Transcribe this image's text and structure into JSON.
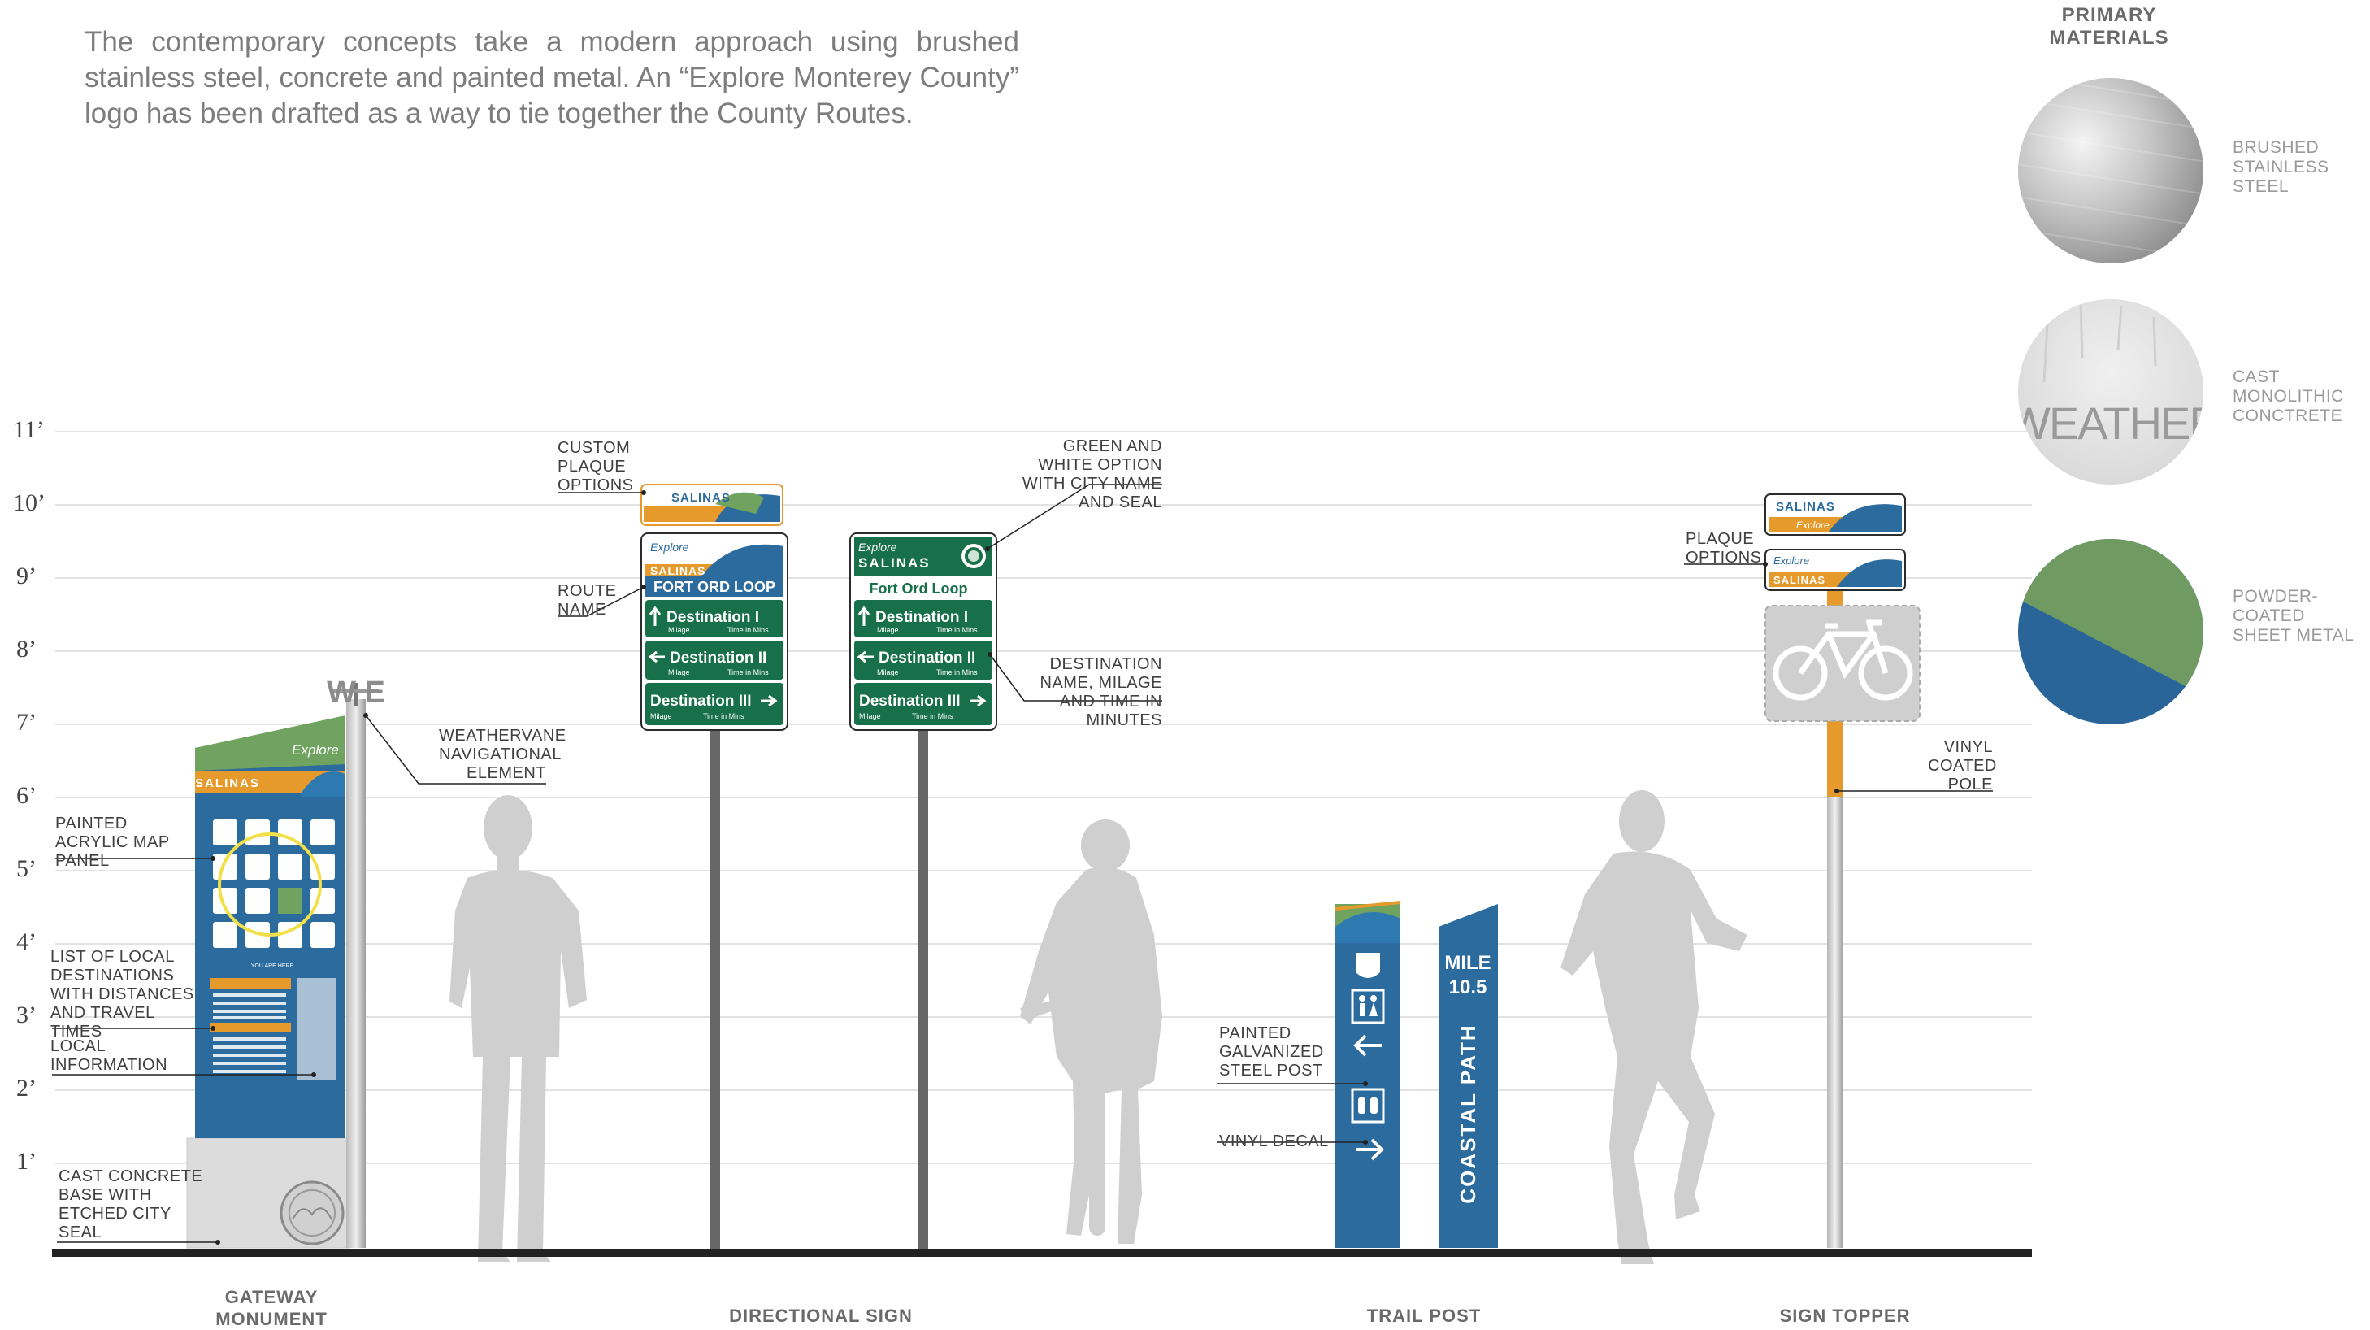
{
  "intro": "The contemporary concepts take a modern approach using brushed stainless steel, concrete and painted metal.  An “Explore Monterey County” logo has been drafted as a way to tie together the County Routes.",
  "height_ticks": [
    "11’",
    "10’",
    "9’",
    "8’",
    "7’",
    "6’",
    "5’",
    "4’",
    "3’",
    "2’",
    "1’"
  ],
  "materials": {
    "title": "PRIMARY MATERIALS",
    "items": [
      "BRUSHED STAINLESS STEEL",
      "CAST MONOLITHIC CONCTRETE",
      "POWDER-COATED SHEET METAL"
    ],
    "concrete_etching": "WEATHERBR ELEMENT"
  },
  "categories": [
    "GATEWAY MONUMENT",
    "DIRECTIONAL SIGN",
    "TRAIL POST",
    "SIGN TOPPER"
  ],
  "annotations": {
    "weathervane": "WEATHERVANE NAVIGATIONAL ELEMENT",
    "map_panel": "PAINTED ACRYLIC MAP PANEL",
    "destinations_list": "LIST OF LOCAL DESTINATIONS WITH DISTANCES AND TRAVEL TIMES",
    "local_info": "LOCAL INFORMATION",
    "concrete_base": "CAST CONCRETE BASE WITH ETCHED CITY SEAL",
    "custom_plaque": "CUSTOM PLAQUE OPTIONS",
    "route_name": "ROUTE NAME",
    "green_white": "GREEN AND WHITE OPTION WITH CITY NAME AND SEAL",
    "destination_name": "DESTINATION NAME, MILAGE AND TIME IN MINUTES",
    "painted_post": "PAINTED GALVANIZED STEEL POST",
    "vinyl_decal": "VINYL DECAL",
    "plaque_options": "PLAQUE OPTIONS",
    "vinyl_pole": "VINYL COATED POLE"
  },
  "signs": {
    "explore": "Explore",
    "city": "SALINAS",
    "route": "FORT ORD LOOP",
    "route_green": "Fort Ord Loop",
    "destinations": [
      "Destination I",
      "Destination II",
      "Destination III"
    ],
    "milage": "Milage",
    "time": "Time in Mins",
    "weathervane": "W E",
    "mile_label": "MILE",
    "mile_value": "10.5",
    "coastal_path": "COASTAL PATH",
    "you_are_here": "YOU ARE HERE"
  },
  "colors": {
    "sign_green": "#17704a",
    "sign_blue": "#2c6b9e",
    "orange": "#e59a2b",
    "monument_green": "#6fa35f",
    "powder_green": "#6f9a62",
    "powder_blue": "#2a659a",
    "silhouette": "#cfcfcf"
  }
}
